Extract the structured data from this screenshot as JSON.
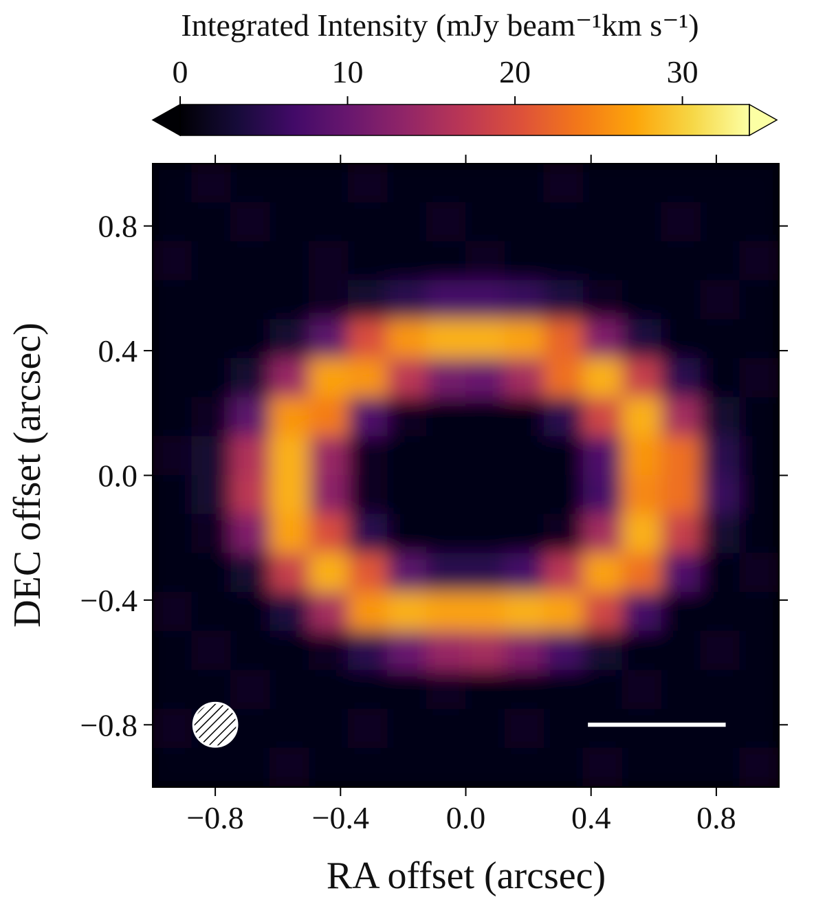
{
  "chart_data": {
    "type": "image",
    "colorbar_label": "Integrated Intensity (mJy beam⁻¹km s⁻¹)",
    "xlabel": "RA offset (arcsec)",
    "ylabel": "DEC offset (arcsec)",
    "xlim": [
      -1.0,
      1.0
    ],
    "ylim": [
      -1.0,
      1.0
    ],
    "xticks": [
      {
        "value": -0.8,
        "label": "−0.8"
      },
      {
        "value": -0.4,
        "label": "−0.4"
      },
      {
        "value": 0,
        "label": "0.0"
      },
      0.4,
      0.8
    ],
    "yticks": [
      {
        "value": -0.8,
        "label": "−0.8"
      },
      {
        "value": -0.4,
        "label": "−0.4"
      },
      {
        "value": 0,
        "label": "0.0"
      },
      0.4,
      0.8
    ],
    "colormap": "inferno",
    "clim": [
      0,
      34
    ],
    "cticks": [
      0,
      10,
      20,
      30
    ],
    "extend": "both",
    "values": [
      [
        1,
        2,
        1,
        1,
        1,
        2,
        1,
        1,
        1,
        1,
        2,
        1,
        1,
        1,
        1,
        1
      ],
      [
        1,
        1,
        2,
        1,
        1,
        1,
        1,
        2,
        1,
        1,
        1,
        1,
        1,
        2,
        1,
        1
      ],
      [
        2,
        1,
        1,
        1,
        2,
        1,
        1,
        1,
        2,
        1,
        1,
        1,
        1,
        1,
        1,
        2
      ],
      [
        1,
        1,
        1,
        1,
        2,
        3,
        5,
        7,
        7,
        6,
        4,
        2,
        1,
        1,
        2,
        1
      ],
      [
        1,
        1,
        1,
        3,
        9,
        20,
        26,
        28,
        28,
        27,
        22,
        12,
        4,
        1,
        1,
        1
      ],
      [
        1,
        1,
        3,
        14,
        27,
        26,
        17,
        11,
        10,
        15,
        23,
        28,
        18,
        5,
        1,
        2
      ],
      [
        1,
        2,
        9,
        26,
        24,
        8,
        2,
        1,
        1,
        1,
        5,
        19,
        28,
        15,
        3,
        1
      ],
      [
        2,
        3,
        16,
        28,
        14,
        2,
        1,
        1,
        1,
        1,
        1,
        8,
        26,
        23,
        5,
        1
      ],
      [
        1,
        3,
        17,
        28,
        13,
        2,
        1,
        1,
        1,
        1,
        1,
        7,
        25,
        23,
        6,
        1
      ],
      [
        1,
        2,
        12,
        27,
        20,
        5,
        1,
        1,
        1,
        1,
        2,
        15,
        28,
        18,
        3,
        1
      ],
      [
        1,
        1,
        3,
        18,
        28,
        21,
        9,
        5,
        5,
        7,
        17,
        27,
        23,
        8,
        1,
        2
      ],
      [
        2,
        1,
        1,
        4,
        15,
        26,
        28,
        27,
        27,
        28,
        27,
        19,
        7,
        1,
        1,
        1
      ],
      [
        1,
        2,
        1,
        1,
        2,
        5,
        10,
        14,
        15,
        12,
        7,
        3,
        1,
        1,
        2,
        1
      ],
      [
        1,
        1,
        2,
        1,
        1,
        1,
        1,
        2,
        1,
        1,
        1,
        1,
        2,
        1,
        1,
        1
      ],
      [
        2,
        1,
        1,
        1,
        1,
        2,
        1,
        1,
        1,
        2,
        1,
        1,
        1,
        1,
        1,
        1
      ],
      [
        1,
        1,
        1,
        2,
        1,
        1,
        1,
        1,
        1,
        1,
        1,
        2,
        1,
        1,
        1,
        2
      ]
    ],
    "beam": {
      "x": -0.8,
      "y": -0.8,
      "major": 0.14
    },
    "scalebar": {
      "x": [
        0.39,
        0.83
      ],
      "y": -0.8
    }
  }
}
